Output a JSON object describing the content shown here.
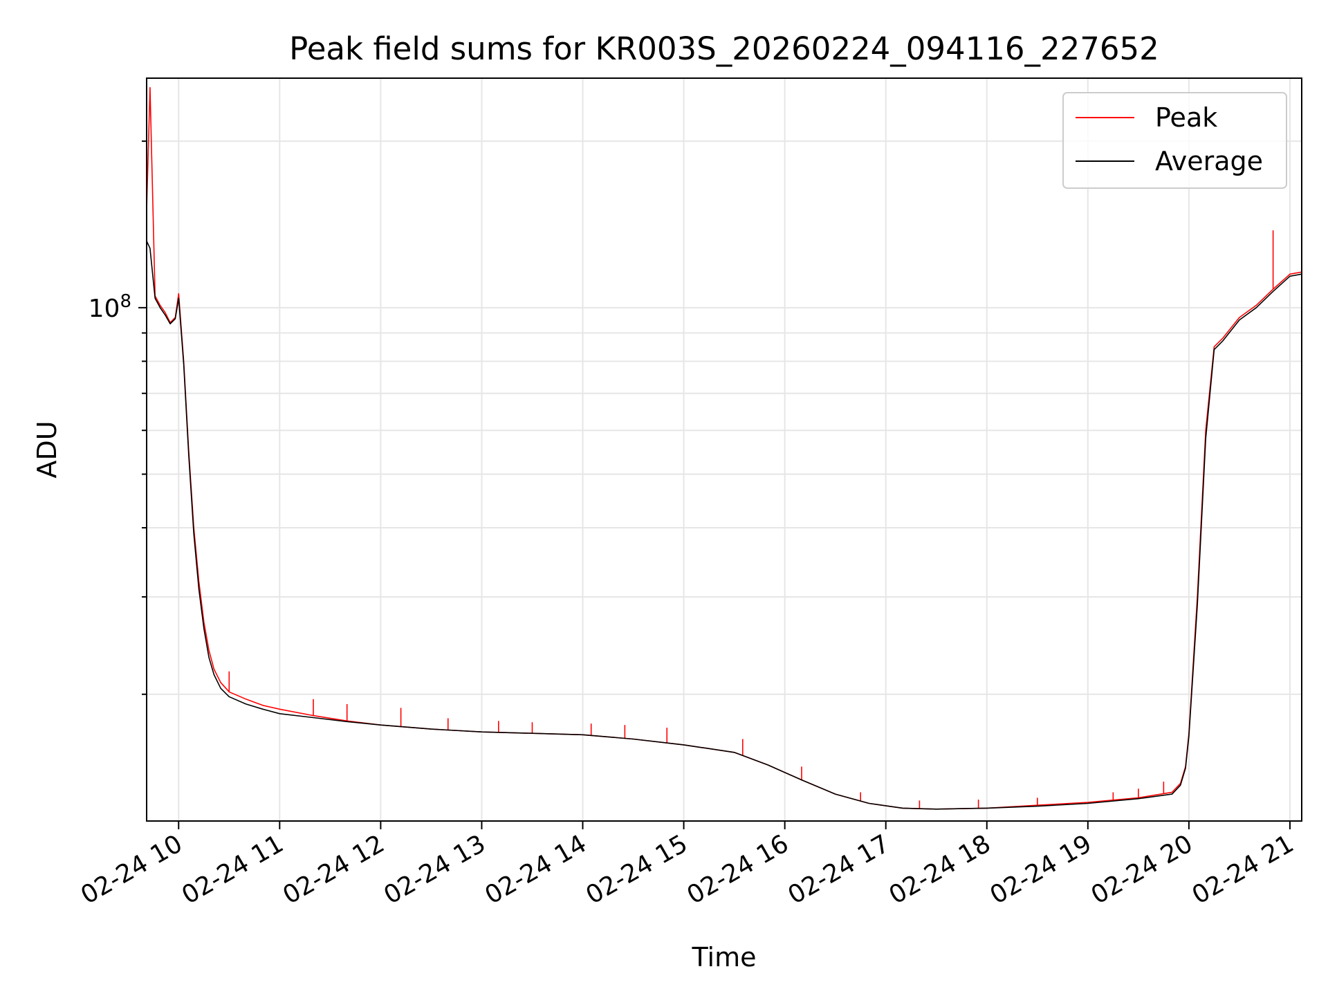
{
  "chart_data": {
    "type": "line",
    "title": "Peak field sums for KR003S_20260224_094116_227652",
    "xlabel": "Time",
    "ylabel": "ADU",
    "y_scale": "log",
    "grid": true,
    "grid_minor": true,
    "legend_position": "top-right",
    "xlim": [
      "2026-02-24 09:41",
      "2026-02-24 21:07"
    ],
    "ylim": [
      11800000,
      260000000
    ],
    "x_ticks": [
      "02-24 10",
      "02-24 11",
      "02-24 12",
      "02-24 13",
      "02-24 14",
      "02-24 15",
      "02-24 16",
      "02-24 17",
      "02-24 18",
      "02-24 19",
      "02-24 20",
      "02-24 21"
    ],
    "y_ticks": [
      {
        "value": 100000000,
        "base": "10",
        "exp": "8"
      }
    ],
    "series": [
      {
        "name": "Peak",
        "color": "#ff0000",
        "x": [
          "2026-02-24 09:41",
          "2026-02-24 09:43",
          "2026-02-24 09:46",
          "2026-02-24 09:49",
          "2026-02-24 09:52",
          "2026-02-24 09:55",
          "2026-02-24 09:58",
          "2026-02-24 10:00",
          "2026-02-24 10:03",
          "2026-02-24 10:06",
          "2026-02-24 10:09",
          "2026-02-24 10:12",
          "2026-02-24 10:15",
          "2026-02-24 10:18",
          "2026-02-24 10:21",
          "2026-02-24 10:25",
          "2026-02-24 10:30",
          "2026-02-24 10:40",
          "2026-02-24 10:50",
          "2026-02-24 11:00",
          "2026-02-24 11:20",
          "2026-02-24 11:40",
          "2026-02-24 12:00",
          "2026-02-24 12:30",
          "2026-02-24 13:00",
          "2026-02-24 13:30",
          "2026-02-24 14:00",
          "2026-02-24 14:30",
          "2026-02-24 15:00",
          "2026-02-24 15:30",
          "2026-02-24 15:50",
          "2026-02-24 16:10",
          "2026-02-24 16:30",
          "2026-02-24 16:50",
          "2026-02-24 17:10",
          "2026-02-24 17:30",
          "2026-02-24 18:00",
          "2026-02-24 18:30",
          "2026-02-24 19:00",
          "2026-02-24 19:30",
          "2026-02-24 19:50",
          "2026-02-24 19:55",
          "2026-02-24 19:58",
          "2026-02-24 20:00",
          "2026-02-24 20:05",
          "2026-02-24 20:10",
          "2026-02-24 20:15",
          "2026-02-24 20:20",
          "2026-02-24 20:30",
          "2026-02-24 20:40",
          "2026-02-24 20:50",
          "2026-02-24 21:00",
          "2026-02-24 21:07"
        ],
        "values": [
          150000000,
          250000000,
          105000000,
          101000000,
          98000000,
          94000000,
          96000000,
          106000000,
          80000000,
          55000000,
          40000000,
          32000000,
          27000000,
          24000000,
          22200000,
          21000000,
          20200000,
          19600000,
          19100000,
          18800000,
          18300000,
          17900000,
          17600000,
          17300000,
          17100000,
          17000000,
          16900000,
          16600000,
          16200000,
          15700000,
          14900000,
          14000000,
          13200000,
          12700000,
          12450000,
          12400000,
          12450000,
          12600000,
          12750000,
          13000000,
          13300000,
          13800000,
          14800000,
          17000000,
          30000000,
          60000000,
          85000000,
          88000000,
          96000000,
          101000000,
          108000000,
          115000000,
          116000000
        ],
        "spikes": [
          {
            "x": "2026-02-24 10:30",
            "value": 22000000
          },
          {
            "x": "2026-02-24 11:20",
            "value": 19600000
          },
          {
            "x": "2026-02-24 11:40",
            "value": 19200000
          },
          {
            "x": "2026-02-24 12:12",
            "value": 18900000
          },
          {
            "x": "2026-02-24 12:40",
            "value": 18100000
          },
          {
            "x": "2026-02-24 13:10",
            "value": 17900000
          },
          {
            "x": "2026-02-24 13:30",
            "value": 17800000
          },
          {
            "x": "2026-02-24 14:05",
            "value": 17700000
          },
          {
            "x": "2026-02-24 14:25",
            "value": 17600000
          },
          {
            "x": "2026-02-24 14:50",
            "value": 17400000
          },
          {
            "x": "2026-02-24 15:35",
            "value": 16600000
          },
          {
            "x": "2026-02-24 16:10",
            "value": 14800000
          },
          {
            "x": "2026-02-24 16:45",
            "value": 13300000
          },
          {
            "x": "2026-02-24 17:20",
            "value": 12850000
          },
          {
            "x": "2026-02-24 17:55",
            "value": 12900000
          },
          {
            "x": "2026-02-24 18:30",
            "value": 13000000
          },
          {
            "x": "2026-02-24 19:15",
            "value": 13300000
          },
          {
            "x": "2026-02-24 19:30",
            "value": 13500000
          },
          {
            "x": "2026-02-24 19:45",
            "value": 13900000
          },
          {
            "x": "2026-02-24 20:50",
            "value": 138000000
          }
        ]
      },
      {
        "name": "Average",
        "color": "#000000",
        "x": [
          "2026-02-24 09:41",
          "2026-02-24 09:43",
          "2026-02-24 09:46",
          "2026-02-24 09:49",
          "2026-02-24 09:52",
          "2026-02-24 09:55",
          "2026-02-24 09:58",
          "2026-02-24 10:00",
          "2026-02-24 10:03",
          "2026-02-24 10:06",
          "2026-02-24 10:09",
          "2026-02-24 10:12",
          "2026-02-24 10:15",
          "2026-02-24 10:18",
          "2026-02-24 10:21",
          "2026-02-24 10:25",
          "2026-02-24 10:30",
          "2026-02-24 10:40",
          "2026-02-24 10:50",
          "2026-02-24 11:00",
          "2026-02-24 11:20",
          "2026-02-24 11:40",
          "2026-02-24 12:00",
          "2026-02-24 12:30",
          "2026-02-24 13:00",
          "2026-02-24 13:30",
          "2026-02-24 14:00",
          "2026-02-24 14:30",
          "2026-02-24 15:00",
          "2026-02-24 15:30",
          "2026-02-24 15:50",
          "2026-02-24 16:10",
          "2026-02-24 16:30",
          "2026-02-24 16:50",
          "2026-02-24 17:10",
          "2026-02-24 17:30",
          "2026-02-24 18:00",
          "2026-02-24 18:30",
          "2026-02-24 19:00",
          "2026-02-24 19:30",
          "2026-02-24 19:50",
          "2026-02-24 19:55",
          "2026-02-24 19:58",
          "2026-02-24 20:00",
          "2026-02-24 20:05",
          "2026-02-24 20:10",
          "2026-02-24 20:15",
          "2026-02-24 20:20",
          "2026-02-24 20:30",
          "2026-02-24 20:40",
          "2026-02-24 20:50",
          "2026-02-24 21:00",
          "2026-02-24 21:07"
        ],
        "values": [
          132000000,
          128000000,
          104000000,
          100000000,
          97000000,
          93500000,
          95500000,
          104000000,
          79000000,
          54000000,
          39000000,
          31000000,
          26300000,
          23300000,
          21700000,
          20500000,
          19800000,
          19200000,
          18800000,
          18450000,
          18150000,
          17850000,
          17600000,
          17300000,
          17100000,
          17000000,
          16900000,
          16600000,
          16200000,
          15700000,
          14900000,
          14000000,
          13200000,
          12700000,
          12450000,
          12400000,
          12450000,
          12550000,
          12700000,
          12950000,
          13200000,
          13700000,
          14700000,
          16800000,
          29000000,
          58000000,
          84000000,
          87000000,
          95000000,
          100000000,
          107000000,
          114000000,
          115000000
        ]
      }
    ]
  }
}
